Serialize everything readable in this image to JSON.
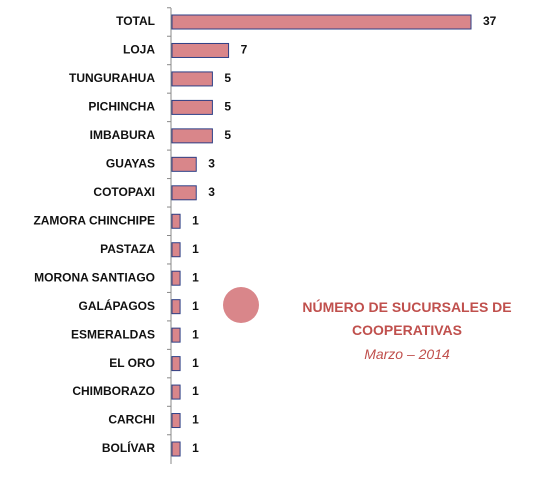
{
  "chart_data": {
    "type": "bar",
    "orientation": "horizontal",
    "title": "NÚMERO DE SUCURSALES DE COOPERATIVAS",
    "subtitle": "Marzo – 2014",
    "categories": [
      "TOTAL",
      "LOJA",
      "TUNGURAHUA",
      "PICHINCHA",
      "IMBABURA",
      "GUAYAS",
      "COTOPAXI",
      "ZAMORA CHINCHIPE",
      "PASTAZA",
      "MORONA SANTIAGO",
      "GALÁPAGOS",
      "ESMERALDAS",
      "EL ORO",
      "CHIMBORAZO",
      "CARCHI",
      "BOLÍVAR"
    ],
    "values": [
      37,
      7,
      5,
      5,
      5,
      3,
      3,
      1,
      1,
      1,
      1,
      1,
      1,
      1,
      1,
      1
    ],
    "color": "#d9868a",
    "edge_color": "#2e3f86",
    "annotation_color": "#c0504d"
  }
}
